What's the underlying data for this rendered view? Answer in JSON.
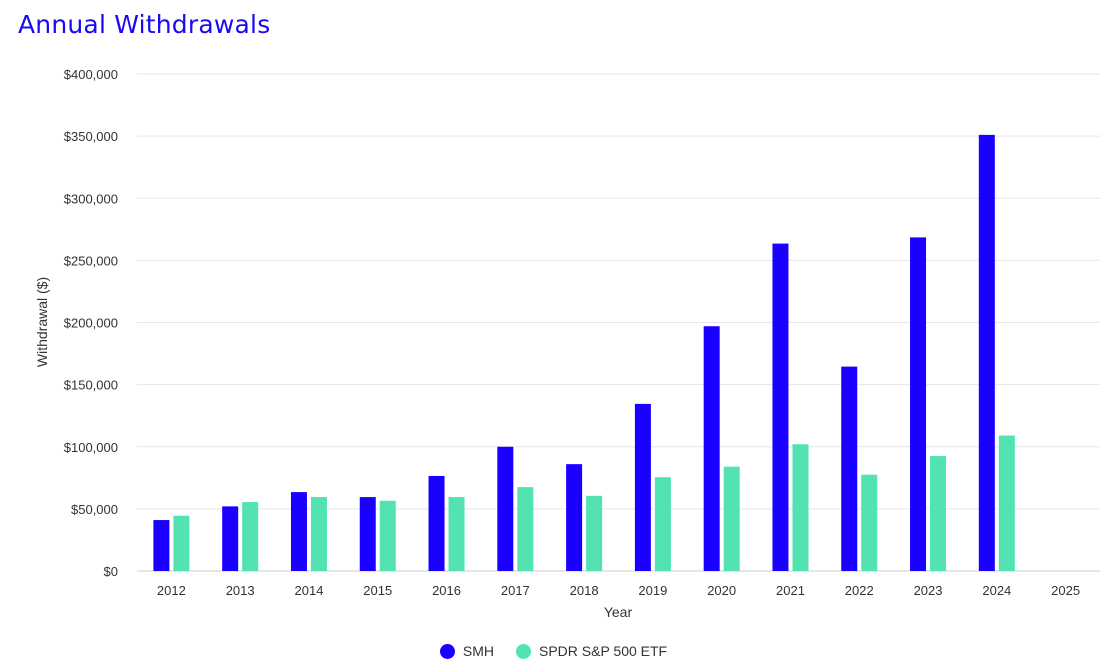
{
  "chart_data": {
    "type": "bar",
    "title": "Annual Withdrawals",
    "xlabel": "Year",
    "ylabel": "Withdrawal ($)",
    "ylim": [
      0,
      400000
    ],
    "yticks": [
      0,
      50000,
      100000,
      150000,
      200000,
      250000,
      300000,
      350000,
      400000
    ],
    "ytick_labels": [
      "$0",
      "$50,000",
      "$100,000",
      "$150,000",
      "$200,000",
      "$250,000",
      "$300,000",
      "$350,000",
      "$400,000"
    ],
    "categories": [
      "2012",
      "2013",
      "2014",
      "2015",
      "2016",
      "2017",
      "2018",
      "2019",
      "2020",
      "2021",
      "2022",
      "2023",
      "2024",
      "2025"
    ],
    "series": [
      {
        "name": "SMH",
        "color": "#1a00ff",
        "values": [
          41000,
          52000,
          63500,
          59500,
          76500,
          100000,
          86000,
          134500,
          197000,
          263500,
          164500,
          268500,
          351000,
          null
        ]
      },
      {
        "name": "SPDR S&P 500 ETF",
        "color": "#52e3b0",
        "values": [
          44500,
          55500,
          59500,
          56500,
          59500,
          67500,
          60500,
          75500,
          84000,
          102000,
          77500,
          92500,
          109000,
          null
        ]
      }
    ],
    "grid": true,
    "legend_position": "bottom-center"
  }
}
